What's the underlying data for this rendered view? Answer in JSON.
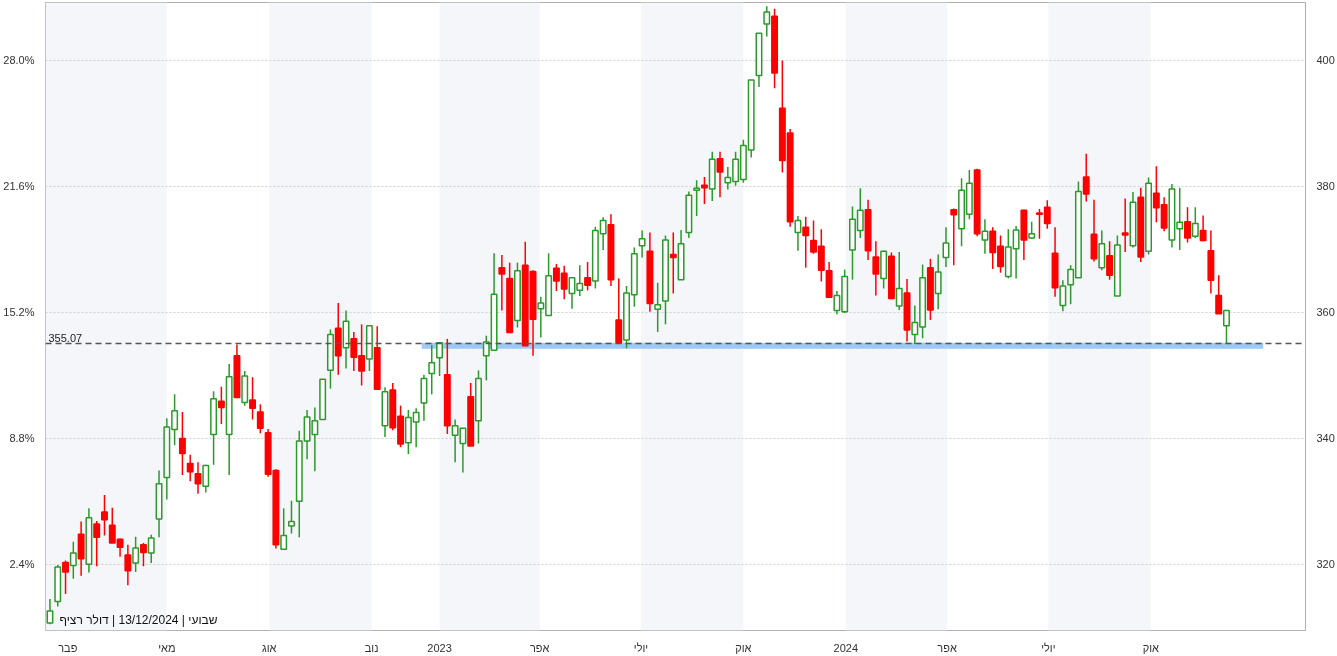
{
  "chart_data": {
    "type": "candlestick",
    "x": [
      "2022-01-16",
      "2022-01-23",
      "2022-01-30",
      "2022-02-06",
      "2022-02-13",
      "2022-02-20",
      "2022-02-27",
      "2022-03-06",
      "2022-03-13",
      "2022-03-20",
      "2022-03-27",
      "2022-04-03",
      "2022-04-10",
      "2022-04-17",
      "2022-04-24",
      "2022-05-01",
      "2022-05-08",
      "2022-05-15",
      "2022-05-22",
      "2022-05-29",
      "2022-06-05",
      "2022-06-12",
      "2022-06-19",
      "2022-06-26",
      "2022-07-03",
      "2022-07-10",
      "2022-07-17",
      "2022-07-24",
      "2022-07-31",
      "2022-08-07",
      "2022-08-14",
      "2022-08-21",
      "2022-08-28",
      "2022-09-04",
      "2022-09-11",
      "2022-09-18",
      "2022-09-25",
      "2022-10-02",
      "2022-10-09",
      "2022-10-16",
      "2022-10-23",
      "2022-10-30",
      "2022-11-06",
      "2022-11-13",
      "2022-11-20",
      "2022-11-27",
      "2022-12-04",
      "2022-12-11",
      "2022-12-18",
      "2022-12-25",
      "2023-01-01",
      "2023-01-08",
      "2023-01-15",
      "2023-01-22",
      "2023-01-29",
      "2023-02-05",
      "2023-02-12",
      "2023-02-19",
      "2023-02-26",
      "2023-03-05",
      "2023-03-12",
      "2023-03-19",
      "2023-03-26",
      "2023-04-02",
      "2023-04-09",
      "2023-04-16",
      "2023-04-23",
      "2023-04-30",
      "2023-05-07",
      "2023-05-14",
      "2023-05-21",
      "2023-05-28",
      "2023-06-04",
      "2023-06-11",
      "2023-06-18",
      "2023-06-25",
      "2023-07-02",
      "2023-07-09",
      "2023-07-16",
      "2023-07-23",
      "2023-07-30",
      "2023-08-06",
      "2023-08-13",
      "2023-08-20",
      "2023-08-27",
      "2023-09-03",
      "2023-09-10",
      "2023-09-17",
      "2023-09-24",
      "2023-10-01",
      "2023-10-08",
      "2023-10-15",
      "2023-10-22",
      "2023-10-29",
      "2023-11-05",
      "2023-11-12",
      "2023-11-19",
      "2023-11-26",
      "2023-12-03",
      "2023-12-10",
      "2023-12-17",
      "2023-12-24",
      "2023-12-31",
      "2024-01-07",
      "2024-01-14",
      "2024-01-21",
      "2024-01-28",
      "2024-02-04",
      "2024-02-11",
      "2024-02-18",
      "2024-02-25",
      "2024-03-03",
      "2024-03-10",
      "2024-03-17",
      "2024-03-24",
      "2024-03-31",
      "2024-04-07",
      "2024-04-14",
      "2024-04-21",
      "2024-04-28",
      "2024-05-05",
      "2024-05-12",
      "2024-05-19",
      "2024-05-26",
      "2024-06-02",
      "2024-06-09",
      "2024-06-16",
      "2024-06-23",
      "2024-06-30",
      "2024-07-07",
      "2024-07-14",
      "2024-07-21",
      "2024-07-28",
      "2024-08-04",
      "2024-08-11",
      "2024-08-18",
      "2024-08-25",
      "2024-09-01",
      "2024-09-08",
      "2024-09-15",
      "2024-09-22",
      "2024-09-29",
      "2024-10-06",
      "2024-10-13",
      "2024-10-20",
      "2024-10-27",
      "2024-11-03",
      "2024-11-10",
      "2024-11-17",
      "2024-11-24",
      "2024-12-01",
      "2024-12-08"
    ],
    "ohlc": [
      [
        310.7,
        314.5,
        310.5,
        312.6
      ],
      [
        314.1,
        319.9,
        313.3,
        319.6
      ],
      [
        320.3,
        320.6,
        315.3,
        318.8
      ],
      [
        319.8,
        323.6,
        317.7,
        321.8
      ],
      [
        324.8,
        326.8,
        318.2,
        320.9
      ],
      [
        320.0,
        328.9,
        318.7,
        327.4
      ],
      [
        326.4,
        326.9,
        319.7,
        324.3
      ],
      [
        328.3,
        331.0,
        324.6,
        327.1
      ],
      [
        326.2,
        329.0,
        323.4,
        323.4
      ],
      [
        324.0,
        324.1,
        321.2,
        322.7
      ],
      [
        321.5,
        323.1,
        316.7,
        319.0
      ],
      [
        320.2,
        324.4,
        318.8,
        322.6
      ],
      [
        323.1,
        323.4,
        319.7,
        321.9
      ],
      [
        321.8,
        324.7,
        320.2,
        324.2
      ],
      [
        327.2,
        334.9,
        324.3,
        332.8
      ],
      [
        333.8,
        343.2,
        330.3,
        341.8
      ],
      [
        341.4,
        347.0,
        338.9,
        344.4
      ],
      [
        340.0,
        344.2,
        334.2,
        337.6
      ],
      [
        336.0,
        337.4,
        333.2,
        334.7
      ],
      [
        334.4,
        336.2,
        331.2,
        332.8
      ],
      [
        332.4,
        335.8,
        331.4,
        335.7
      ],
      [
        340.6,
        347.5,
        335.8,
        346.3
      ],
      [
        345.9,
        348.2,
        342.3,
        344.9
      ],
      [
        340.6,
        351.8,
        334.2,
        349.8
      ],
      [
        353.1,
        354.9,
        346.4,
        346.5
      ],
      [
        345.7,
        350.7,
        345.2,
        349.9
      ],
      [
        346.1,
        349.7,
        343.0,
        344.8
      ],
      [
        344.2,
        345.4,
        340.8,
        341.6
      ],
      [
        340.9,
        341.5,
        333.9,
        334.3
      ],
      [
        334.9,
        335.1,
        322.5,
        323.1
      ],
      [
        322.4,
        328.9,
        322.3,
        324.6
      ],
      [
        326.1,
        330.1,
        324.9,
        326.8
      ],
      [
        330.0,
        341.2,
        324.3,
        339.6
      ],
      [
        339.6,
        344.5,
        336.7,
        343.4
      ],
      [
        340.6,
        344.9,
        334.8,
        342.8
      ],
      [
        343.0,
        349.4,
        343.0,
        349.4
      ],
      [
        350.8,
        357.3,
        347.9,
        356.5
      ],
      [
        357.5,
        361.5,
        350.1,
        353.1
      ],
      [
        354.4,
        360.3,
        351.1,
        358.6
      ],
      [
        355.8,
        356.9,
        350.7,
        352.9
      ],
      [
        353.1,
        358.1,
        348.4,
        350.7
      ],
      [
        352.6,
        357.9,
        350.7,
        357.9
      ],
      [
        354.4,
        357.8,
        347.8,
        347.8
      ],
      [
        342.0,
        348.1,
        340.2,
        347.4
      ],
      [
        347.7,
        348.8,
        341.3,
        341.7
      ],
      [
        343.5,
        345.2,
        338.6,
        339.1
      ],
      [
        339.3,
        344.5,
        337.5,
        343.3
      ],
      [
        342.6,
        344.8,
        338.6,
        344.1
      ],
      [
        345.6,
        350.1,
        342.8,
        349.5
      ],
      [
        350.3,
        354.8,
        347.0,
        352.0
      ],
      [
        352.8,
        355.3,
        349.9,
        355.2
      ],
      [
        350.1,
        355.8,
        340.7,
        342.0
      ],
      [
        340.5,
        343.0,
        336.2,
        342.0
      ],
      [
        339.2,
        341.6,
        334.6,
        341.6
      ],
      [
        346.6,
        348.8,
        338.8,
        338.8
      ],
      [
        342.8,
        350.8,
        339.2,
        349.5
      ],
      [
        353.1,
        356.3,
        349.2,
        355.3
      ],
      [
        354.0,
        369.4,
        354.0,
        362.9
      ],
      [
        367.1,
        369.1,
        360.3,
        366.1
      ],
      [
        365.4,
        367.9,
        356.8,
        356.8
      ],
      [
        358.7,
        367.9,
        357.6,
        366.6
      ],
      [
        367.5,
        371.2,
        354.7,
        354.7
      ],
      [
        366.5,
        366.7,
        353.1,
        358.9
      ],
      [
        360.6,
        362.5,
        356.0,
        361.5
      ],
      [
        359.5,
        369.4,
        359.5,
        365.8
      ],
      [
        367.0,
        367.7,
        363.4,
        365.0
      ],
      [
        366.2,
        367.4,
        362.1,
        363.7
      ],
      [
        363.0,
        365.5,
        360.6,
        365.5
      ],
      [
        363.5,
        367.5,
        362.6,
        364.6
      ],
      [
        365.5,
        368.0,
        363.5,
        364.3
      ],
      [
        365.0,
        373.6,
        363.8,
        373.0
      ],
      [
        372.5,
        375.1,
        369.9,
        374.6
      ],
      [
        373.9,
        375.6,
        364.2,
        365.2
      ],
      [
        358.8,
        365.4,
        355.2,
        355.2
      ],
      [
        355.6,
        364.2,
        354.3,
        363.1
      ],
      [
        362.8,
        370.3,
        360.9,
        369.3
      ],
      [
        370.6,
        373.0,
        368.7,
        371.7
      ],
      [
        369.7,
        372.7,
        360.1,
        361.4
      ],
      [
        360.5,
        364.7,
        356.9,
        361.2
      ],
      [
        361.8,
        372.2,
        358.1,
        371.5
      ],
      [
        369.2,
        372.7,
        363.0,
        368.7
      ],
      [
        365.2,
        373.1,
        365.2,
        370.9
      ],
      [
        372.7,
        379.2,
        371.8,
        378.6
      ],
      [
        379.4,
        381.0,
        375.3,
        379.7
      ],
      [
        380.2,
        381.5,
        377.2,
        379.8
      ],
      [
        379.6,
        385.5,
        377.7,
        384.3
      ],
      [
        384.4,
        385.5,
        378.3,
        382.3
      ],
      [
        380.6,
        383.1,
        379.5,
        381.4
      ],
      [
        380.8,
        385.5,
        380.1,
        384.3
      ],
      [
        381.1,
        387.4,
        380.6,
        386.5
      ],
      [
        385.8,
        396.9,
        384.6,
        396.9
      ],
      [
        397.6,
        404.3,
        395.8,
        404.3
      ],
      [
        405.8,
        408.6,
        403.8,
        407.7
      ],
      [
        407.0,
        408.2,
        395.6,
        398.0
      ],
      [
        392.4,
        400.0,
        382.2,
        384.1
      ],
      [
        388.5,
        389.1,
        373.6,
        374.4
      ],
      [
        372.7,
        375.3,
        369.8,
        374.6
      ],
      [
        373.5,
        375.2,
        367.1,
        372.2
      ],
      [
        371.4,
        374.6,
        369.3,
        369.6
      ],
      [
        370.5,
        373.2,
        364.9,
        366.7
      ],
      [
        366.6,
        368.0,
        362.4,
        362.4
      ],
      [
        360.3,
        363.4,
        359.7,
        362.7
      ],
      [
        360.1,
        366.8,
        359.9,
        365.7
      ],
      [
        369.9,
        376.8,
        365.2,
        374.8
      ],
      [
        373.0,
        379.7,
        371.8,
        376.2
      ],
      [
        376.3,
        377.9,
        368.3,
        369.8
      ],
      [
        368.8,
        371.3,
        362.7,
        366.1
      ],
      [
        365.4,
        369.8,
        363.8,
        369.7
      ],
      [
        368.9,
        369.5,
        362.1,
        362.2
      ],
      [
        361.0,
        369.6,
        360.4,
        363.8
      ],
      [
        363.1,
        365.3,
        355.4,
        357.2
      ],
      [
        356.5,
        361.1,
        355.0,
        358.4
      ],
      [
        357.7,
        367.6,
        355.9,
        365.5
      ],
      [
        367.1,
        368.5,
        358.8,
        360.4
      ],
      [
        363.0,
        369.2,
        360.5,
        366.4
      ],
      [
        368.7,
        373.5,
        367.2,
        371.0
      ],
      [
        376.3,
        376.5,
        367.5,
        375.5
      ],
      [
        373.3,
        381.3,
        370.5,
        379.4
      ],
      [
        375.6,
        382.6,
        374.8,
        380.5
      ],
      [
        382.6,
        382.8,
        372.1,
        372.5
      ],
      [
        371.5,
        374.8,
        369.3,
        372.9
      ],
      [
        372.9,
        373.5,
        366.9,
        369.5
      ],
      [
        370.5,
        372.2,
        366.3,
        367.3
      ],
      [
        365.7,
        373.2,
        365.4,
        370.4
      ],
      [
        370.1,
        373.7,
        365.4,
        373.1
      ],
      [
        376.2,
        376.3,
        368.3,
        371.5
      ],
      [
        371.8,
        374.4,
        371.7,
        372.5
      ],
      [
        375.8,
        376.4,
        371.7,
        375.6
      ],
      [
        376.7,
        377.8,
        373.3,
        374.1
      ],
      [
        369.4,
        373.5,
        362.5,
        363.9
      ],
      [
        361.1,
        365.1,
        360.2,
        364.2
      ],
      [
        364.4,
        367.5,
        361.3,
        366.8
      ],
      [
        365.5,
        380.8,
        365.5,
        379.2
      ],
      [
        381.5,
        385.2,
        377.6,
        378.8
      ],
      [
        372.4,
        377.9,
        368.1,
        368.5
      ],
      [
        367.1,
        373.0,
        366.7,
        370.9
      ],
      [
        369.0,
        371.3,
        365.2,
        365.9
      ],
      [
        362.6,
        372.2,
        362.6,
        370.7
      ],
      [
        372.6,
        378.1,
        369.6,
        372.3
      ],
      [
        370.6,
        379.1,
        370.3,
        377.5
      ],
      [
        378.3,
        379.8,
        368.0,
        368.8
      ],
      [
        369.7,
        381.4,
        369.2,
        380.5
      ],
      [
        378.9,
        383.2,
        374.3,
        376.6
      ],
      [
        377.1,
        378.3,
        372.9,
        373.4
      ],
      [
        371.5,
        380.4,
        370.3,
        379.6
      ],
      [
        373.3,
        379.8,
        369.9,
        374.3
      ],
      [
        374.4,
        376.7,
        371.1,
        371.8
      ],
      [
        372.1,
        376.7,
        371.8,
        374.1
      ],
      [
        373.0,
        375.4,
        371.3,
        371.4
      ],
      [
        369.8,
        373.0,
        363.0,
        365.1
      ],
      [
        362.7,
        365.9,
        359.8,
        359.8
      ],
      [
        357.9,
        360.3,
        355.0,
        360.3
      ]
    ],
    "colors": [
      "#2a9a2a",
      "#2a9a2a",
      "#ff0000",
      "#2a9a2a",
      "#ff0000",
      "#2a9a2a",
      "#ff0000",
      "#ff0000",
      "#ff0000",
      "#ff0000",
      "#ff0000",
      "#2a9a2a",
      "#ff0000",
      "#2a9a2a",
      "#2a9a2a",
      "#2a9a2a",
      "#2a9a2a",
      "#ff0000",
      "#ff0000",
      "#ff0000",
      "#2a9a2a",
      "#2a9a2a",
      "#ff0000",
      "#2a9a2a",
      "#ff0000",
      "#2a9a2a",
      "#ff0000",
      "#ff0000",
      "#ff0000",
      "#ff0000",
      "#2a9a2a",
      "#2a9a2a",
      "#2a9a2a",
      "#2a9a2a",
      "#2a9a2a",
      "#2a9a2a",
      "#2a9a2a",
      "#ff0000",
      "#2a9a2a",
      "#ff0000",
      "#ff0000",
      "#2a9a2a",
      "#ff0000",
      "#2a9a2a",
      "#ff0000",
      "#ff0000",
      "#2a9a2a",
      "#2a9a2a",
      "#2a9a2a",
      "#2a9a2a",
      "#2a9a2a",
      "#ff0000",
      "#2a9a2a",
      "#2a9a2a",
      "#ff0000",
      "#2a9a2a",
      "#2a9a2a",
      "#2a9a2a",
      "#ff0000",
      "#ff0000",
      "#2a9a2a",
      "#ff0000",
      "#ff0000",
      "#2a9a2a",
      "#2a9a2a",
      "#ff0000",
      "#ff0000",
      "#2a9a2a",
      "#2a9a2a",
      "#ff0000",
      "#2a9a2a",
      "#2a9a2a",
      "#ff0000",
      "#ff0000",
      "#2a9a2a",
      "#2a9a2a",
      "#2a9a2a",
      "#ff0000",
      "#2a9a2a",
      "#2a9a2a",
      "#ff0000",
      "#2a9a2a",
      "#2a9a2a",
      "#2a9a2a",
      "#ff0000",
      "#2a9a2a",
      "#ff0000",
      "#2a9a2a",
      "#2a9a2a",
      "#2a9a2a",
      "#2a9a2a",
      "#2a9a2a",
      "#2a9a2a",
      "#ff0000",
      "#ff0000",
      "#ff0000",
      "#2a9a2a",
      "#ff0000",
      "#ff0000",
      "#ff0000",
      "#ff0000",
      "#2a9a2a",
      "#2a9a2a",
      "#2a9a2a",
      "#2a9a2a",
      "#ff0000",
      "#ff0000",
      "#2a9a2a",
      "#ff0000",
      "#2a9a2a",
      "#ff0000",
      "#2a9a2a",
      "#2a9a2a",
      "#ff0000",
      "#2a9a2a",
      "#2a9a2a",
      "#ff0000",
      "#2a9a2a",
      "#2a9a2a",
      "#ff0000",
      "#2a9a2a",
      "#ff0000",
      "#ff0000",
      "#2a9a2a",
      "#2a9a2a",
      "#ff0000",
      "#2a9a2a",
      "#ff0000",
      "#ff0000",
      "#ff0000",
      "#2a9a2a",
      "#2a9a2a",
      "#2a9a2a",
      "#ff0000",
      "#ff0000",
      "#2a9a2a",
      "#ff0000",
      "#2a9a2a",
      "#ff0000",
      "#2a9a2a",
      "#ff0000",
      "#2a9a2a",
      "#ff0000",
      "#ff0000",
      "#2a9a2a",
      "#2a9a2a",
      "#ff0000",
      "#2a9a2a",
      "#ff0000",
      "#ff0000",
      "#ff0000",
      "#2a9a2a"
    ],
    "series": [
      {
        "type": "line",
        "color": "#9ccaf5",
        "x": [
          "2022-12-16",
          "2025-01-10"
        ],
        "values": [
          354.7,
          354.7
        ]
      }
    ],
    "xlim": [
      "2022-01-12",
      "2025-02-17"
    ],
    "xticks": [
      {
        "value": "2022-02-01",
        "label": "פבר"
      },
      {
        "value": "2022-05-01",
        "label": "מאי"
      },
      {
        "value": "2022-08-01",
        "label": "אוג"
      },
      {
        "value": "2022-11-01",
        "label": "נוב"
      },
      {
        "value": "2023-01-01",
        "label": "2023"
      },
      {
        "value": "2023-04-01",
        "label": "אפר"
      },
      {
        "value": "2023-07-01",
        "label": "יולי"
      },
      {
        "value": "2023-10-01",
        "label": "אוק"
      },
      {
        "value": "2024-01-01",
        "label": "2024"
      },
      {
        "value": "2024-04-01",
        "label": "אפר"
      },
      {
        "value": "2024-07-01",
        "label": "יולי"
      },
      {
        "value": "2024-10-01",
        "label": "אוק"
      }
    ],
    "ylim": [
      309.5,
      409.2
    ],
    "yticks": [
      320,
      340,
      360,
      380,
      400
    ],
    "y2lim": [
      -0.96,
      30.94
    ],
    "y2ticks": [
      {
        "value": 2.4,
        "label": "2.4%"
      },
      {
        "value": 8.8,
        "label": "8.8%"
      },
      {
        "value": 15.2,
        "label": "15.2%"
      },
      {
        "value": 21.6,
        "label": "21.6%"
      },
      {
        "value": 28.0,
        "label": "28.0%"
      }
    ],
    "grid": "y",
    "ref_lines": [
      {
        "axis": "y",
        "value": 355.07,
        "label": "355.07",
        "color": "#555555",
        "line_style": "dashed"
      }
    ],
    "bands": [
      {
        "axis": "x",
        "from": "2022-01-12",
        "to": "2022-05-01",
        "color": "#f4f6f9"
      },
      {
        "axis": "x",
        "from": "2022-08-01",
        "to": "2022-11-01",
        "color": "#f4f6f9"
      },
      {
        "axis": "x",
        "from": "2023-01-01",
        "to": "2023-04-01",
        "color": "#f4f6f9"
      },
      {
        "axis": "x",
        "from": "2023-07-01",
        "to": "2023-10-01",
        "color": "#f4f6f9"
      },
      {
        "axis": "x",
        "from": "2024-01-01",
        "to": "2024-04-01",
        "color": "#f4f6f9"
      },
      {
        "axis": "x",
        "from": "2024-07-01",
        "to": "2024-10-01",
        "color": "#f4f6f9"
      }
    ],
    "annotations": [
      "שבועי | 13/12/2024 | דולר רציף"
    ]
  }
}
